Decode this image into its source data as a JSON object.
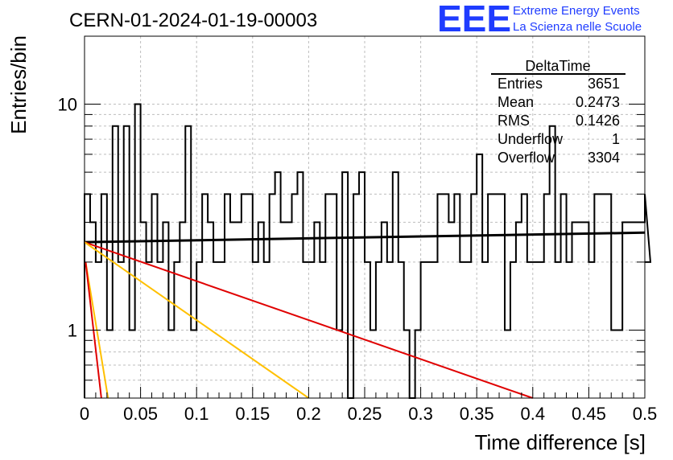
{
  "header": {
    "run_title": "CERN-01-2024-01-19-00003",
    "logo_text": "EEE",
    "logo_line1": "Extreme Energy Events",
    "logo_line2": "La Scienza nelle Scuole",
    "logo_color": "#1f3cff"
  },
  "stats_box": {
    "name": "DeltaTime",
    "rows": [
      {
        "label": "Entries",
        "value": "3651"
      },
      {
        "label": "Mean",
        "value": "0.2473"
      },
      {
        "label": "RMS",
        "value": "0.1426"
      },
      {
        "label": "Underflow",
        "value": "1"
      },
      {
        "label": "Overflow",
        "value": "3304"
      }
    ]
  },
  "chart_data": {
    "type": "line",
    "xlabel": "Time difference [s]",
    "ylabel": "Entries/bin",
    "xlim": [
      0,
      0.5
    ],
    "ylim": [
      0.5,
      20
    ],
    "log_y": true,
    "grid": true,
    "x_ticks": [
      "0",
      "0.05",
      "0.1",
      "0.15",
      "0.2",
      "0.25",
      "0.3",
      "0.35",
      "0.4",
      "0.45",
      "0.5"
    ],
    "y_ticks": [
      {
        "value": 1,
        "label": "1"
      },
      {
        "value": 10,
        "label": "10"
      }
    ],
    "histogram": {
      "bin_width": 0.005,
      "color": "#000000",
      "values": [
        4,
        3,
        2,
        4,
        1,
        8,
        2,
        8,
        1,
        10,
        3,
        2,
        4,
        2,
        3,
        1,
        2,
        3,
        8,
        1,
        2,
        4,
        3,
        2,
        2,
        4,
        3,
        3,
        4,
        4,
        2,
        3,
        2,
        4,
        5,
        3,
        3,
        4,
        5,
        2,
        2,
        3,
        2,
        4,
        4,
        1,
        5,
        0.3,
        4,
        5,
        2,
        1,
        2,
        3,
        2,
        5,
        2,
        1,
        0.3,
        1,
        2,
        2,
        2,
        4,
        4,
        3,
        4,
        2,
        2,
        4,
        6,
        2,
        4,
        4,
        4,
        1,
        2,
        3,
        4,
        2,
        2,
        2,
        4,
        8,
        2,
        4,
        2,
        3,
        3,
        3,
        2,
        4,
        4,
        4,
        1,
        1,
        3,
        3,
        3,
        3,
        4,
        2
      ]
    },
    "fit_lines": [
      {
        "color": "#000000",
        "points": [
          [
            0,
            2.45
          ],
          [
            0.5,
            2.7
          ]
        ]
      },
      {
        "color": "#e00000",
        "points": [
          [
            0,
            2.45
          ],
          [
            0.4,
            0.5
          ]
        ]
      },
      {
        "color": "#ffc000",
        "points": [
          [
            0,
            2.45
          ],
          [
            0.2,
            0.5
          ]
        ]
      },
      {
        "color": "#ffc000",
        "points": [
          [
            0.001,
            2.0
          ],
          [
            0.021,
            0.5
          ]
        ]
      },
      {
        "color": "#e00000",
        "points": [
          [
            0.001,
            2.0
          ],
          [
            0.015,
            0.5
          ]
        ]
      }
    ]
  }
}
